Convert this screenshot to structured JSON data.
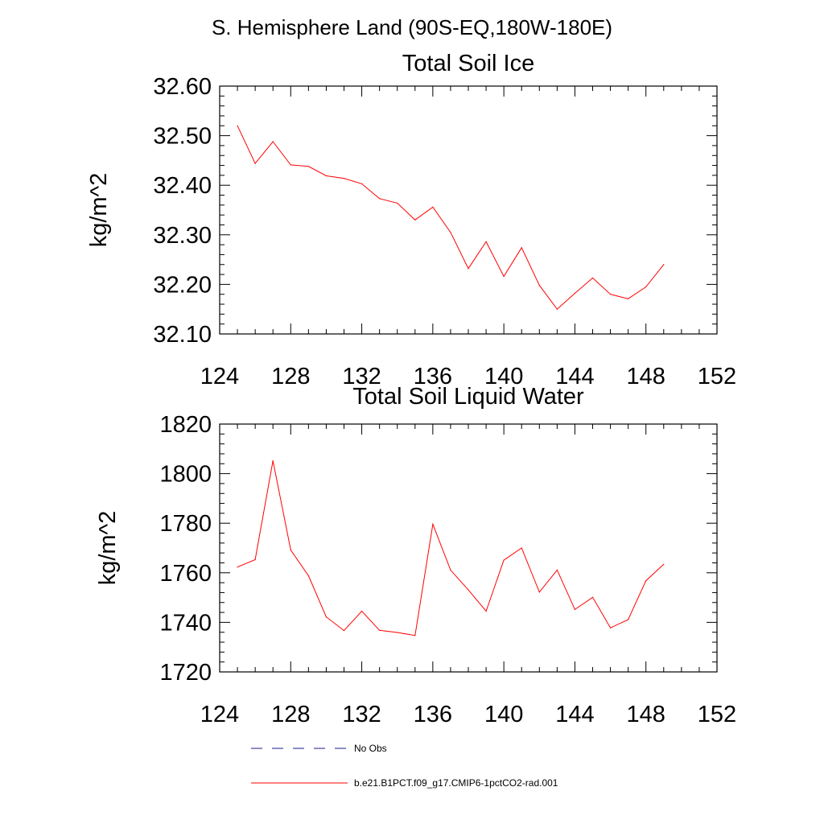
{
  "page_title": "S. Hemisphere Land (90S-EQ,180W-180E)",
  "legend": {
    "entries": [
      {
        "label": "No Obs",
        "style": "dashed",
        "color": "#1a1a8c"
      },
      {
        "label": "b.e21.B1PCT.f09_g17.CMIP6-1pctCO2-rad.001",
        "style": "solid",
        "color": "#ff0000"
      }
    ]
  },
  "chart_data": [
    {
      "type": "line",
      "title": "Total Soil Ice",
      "xlabel": "",
      "ylabel": "kg/m^2",
      "xlim": [
        124,
        152
      ],
      "ylim": [
        32.1,
        32.6
      ],
      "xticks": [
        124,
        128,
        132,
        136,
        140,
        144,
        148,
        152
      ],
      "xtick_labels": [
        "124",
        "128",
        "132",
        "136",
        "140",
        "144",
        "148",
        "152"
      ],
      "yticks": [
        32.1,
        32.2,
        32.3,
        32.4,
        32.5,
        32.6
      ],
      "ytick_labels": [
        "32.10",
        "32.20",
        "32.30",
        "32.40",
        "32.50",
        "32.60"
      ],
      "grid": false,
      "series": [
        {
          "name": "b.e21.B1PCT.f09_g17.CMIP6-1pctCO2-rad.001",
          "color": "#ff0000",
          "x": [
            125,
            126,
            127,
            128,
            129,
            130,
            131,
            132,
            133,
            134,
            135,
            136,
            137,
            138,
            139,
            140,
            141,
            142,
            143,
            144,
            145,
            146,
            147,
            148,
            149
          ],
          "values": [
            32.52,
            32.444,
            32.488,
            32.441,
            32.438,
            32.419,
            32.414,
            32.403,
            32.373,
            32.364,
            32.33,
            32.356,
            32.305,
            32.232,
            32.286,
            32.216,
            32.274,
            32.198,
            32.15,
            32.182,
            32.213,
            32.18,
            32.171,
            32.195,
            32.24
          ]
        }
      ]
    },
    {
      "type": "line",
      "title": "Total Soil Liquid Water",
      "xlabel": "",
      "ylabel": "kg/m^2",
      "xlim": [
        124,
        152
      ],
      "ylim": [
        1720,
        1820
      ],
      "xticks": [
        124,
        128,
        132,
        136,
        140,
        144,
        148,
        152
      ],
      "xtick_labels": [
        "124",
        "128",
        "132",
        "136",
        "140",
        "144",
        "148",
        "152"
      ],
      "yticks": [
        1720,
        1740,
        1760,
        1780,
        1800,
        1820
      ],
      "ytick_labels": [
        "1720",
        "1740",
        "1760",
        "1780",
        "1800",
        "1820"
      ],
      "grid": false,
      "series": [
        {
          "name": "b.e21.B1PCT.f09_g17.CMIP6-1pctCO2-rad.001",
          "color": "#ff0000",
          "x": [
            125,
            126,
            127,
            128,
            129,
            130,
            131,
            132,
            133,
            134,
            135,
            136,
            137,
            138,
            139,
            140,
            141,
            142,
            143,
            144,
            145,
            146,
            147,
            148,
            149
          ],
          "values": [
            1762.3,
            1765.3,
            1805.2,
            1769.2,
            1758.8,
            1742.2,
            1736.7,
            1744.5,
            1736.8,
            1735.9,
            1734.7,
            1779.6,
            1761.1,
            1753.1,
            1744.5,
            1765.1,
            1770.0,
            1752.2,
            1761.1,
            1745.2,
            1750.1,
            1737.8,
            1741.1,
            1756.8,
            1763.4
          ]
        }
      ]
    }
  ]
}
